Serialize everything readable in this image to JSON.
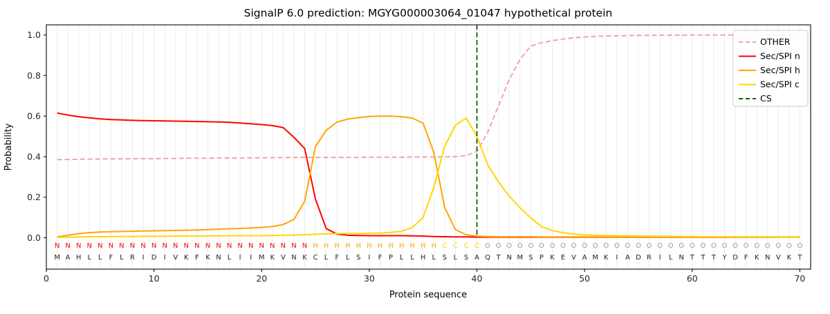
{
  "title": "SignalP 6.0 prediction: MGYG000003064_01047 hypothetical protein",
  "axes": {
    "ylabel": "Probability",
    "xlabel": "Protein sequence",
    "yticks": [
      0.0,
      0.2,
      0.4,
      0.6,
      0.8,
      1.0
    ],
    "xticks": [
      0,
      10,
      20,
      30,
      40,
      50,
      60,
      70
    ]
  },
  "legend": {
    "entries": [
      {
        "label": "OTHER",
        "color": "#f5a3a3",
        "dash": true
      },
      {
        "label": "Sec/SPI n",
        "color": "#ff0000",
        "dash": false
      },
      {
        "label": "Sec/SPI h",
        "color": "#ffa500",
        "dash": false
      },
      {
        "label": "Sec/SPI c",
        "color": "#ffd700",
        "dash": false
      },
      {
        "label": "CS",
        "color": "#006400",
        "dash": true
      }
    ]
  },
  "chart_data": {
    "type": "line",
    "title": "SignalP 6.0 prediction: MGYG000003064_01047 hypothetical protein",
    "xlabel": "Protein sequence",
    "ylabel": "Probability",
    "xlim": [
      0,
      71
    ],
    "ylim": [
      -0.155,
      1.05
    ],
    "grid": "vertical-per-residue",
    "legend_position": "upper-right",
    "x_start": 1,
    "x_step": 1,
    "series": [
      {
        "name": "OTHER",
        "color": "#f5a3a3",
        "dash": true,
        "values": [
          0.385,
          0.386,
          0.387,
          0.388,
          0.388,
          0.389,
          0.389,
          0.39,
          0.39,
          0.39,
          0.391,
          0.391,
          0.392,
          0.392,
          0.392,
          0.393,
          0.393,
          0.393,
          0.394,
          0.394,
          0.395,
          0.395,
          0.396,
          0.396,
          0.396,
          0.396,
          0.396,
          0.396,
          0.396,
          0.397,
          0.397,
          0.397,
          0.397,
          0.398,
          0.398,
          0.398,
          0.399,
          0.4,
          0.405,
          0.425,
          0.52,
          0.65,
          0.78,
          0.88,
          0.945,
          0.962,
          0.972,
          0.98,
          0.986,
          0.99,
          0.993,
          0.995,
          0.996,
          0.997,
          0.998,
          0.998,
          0.999,
          0.999,
          0.999,
          1.0,
          1.0,
          1.0,
          1.0,
          1.0,
          1.0,
          1.0,
          1.0,
          1.0,
          1.0,
          1.0
        ]
      },
      {
        "name": "Sec/SPI n",
        "color": "#ff0000",
        "dash": false,
        "values": [
          0.615,
          0.605,
          0.597,
          0.591,
          0.586,
          0.583,
          0.581,
          0.579,
          0.578,
          0.577,
          0.576,
          0.575,
          0.574,
          0.573,
          0.572,
          0.571,
          0.569,
          0.566,
          0.562,
          0.558,
          0.553,
          0.543,
          0.495,
          0.44,
          0.19,
          0.045,
          0.018,
          0.012,
          0.011,
          0.01,
          0.01,
          0.01,
          0.01,
          0.009,
          0.008,
          0.006,
          0.005,
          0.004,
          0.004,
          0.003,
          0.003,
          0.003,
          0.003,
          0.003,
          0.003,
          0.003,
          0.003,
          0.003,
          0.003,
          0.003,
          0.003,
          0.003,
          0.003,
          0.003,
          0.003,
          0.003,
          0.003,
          0.003,
          0.003,
          0.003,
          0.003,
          0.003,
          0.003,
          0.003,
          0.003,
          0.003,
          0.003,
          0.003,
          0.003,
          0.003
        ]
      },
      {
        "name": "Sec/SPI h",
        "color": "#ffa500",
        "dash": false,
        "values": [
          0.004,
          0.012,
          0.02,
          0.025,
          0.028,
          0.03,
          0.031,
          0.032,
          0.033,
          0.034,
          0.035,
          0.036,
          0.037,
          0.038,
          0.04,
          0.042,
          0.044,
          0.046,
          0.048,
          0.051,
          0.055,
          0.065,
          0.09,
          0.18,
          0.45,
          0.53,
          0.57,
          0.585,
          0.592,
          0.598,
          0.6,
          0.6,
          0.597,
          0.59,
          0.565,
          0.42,
          0.15,
          0.04,
          0.015,
          0.008,
          0.006,
          0.005,
          0.005,
          0.005,
          0.005,
          0.004,
          0.004,
          0.004,
          0.004,
          0.004,
          0.004,
          0.004,
          0.004,
          0.004,
          0.004,
          0.004,
          0.004,
          0.004,
          0.004,
          0.004,
          0.004,
          0.004,
          0.004,
          0.004,
          0.004,
          0.004,
          0.004,
          0.004,
          0.004,
          0.004
        ]
      },
      {
        "name": "Sec/SPI c",
        "color": "#ffd700",
        "dash": false,
        "values": [
          0.002,
          0.003,
          0.004,
          0.005,
          0.005,
          0.006,
          0.006,
          0.006,
          0.007,
          0.007,
          0.007,
          0.008,
          0.008,
          0.008,
          0.009,
          0.009,
          0.009,
          0.01,
          0.01,
          0.01,
          0.011,
          0.012,
          0.013,
          0.015,
          0.017,
          0.019,
          0.02,
          0.021,
          0.021,
          0.022,
          0.023,
          0.026,
          0.032,
          0.05,
          0.1,
          0.25,
          0.45,
          0.555,
          0.59,
          0.5,
          0.36,
          0.275,
          0.205,
          0.148,
          0.098,
          0.055,
          0.035,
          0.025,
          0.018,
          0.014,
          0.012,
          0.011,
          0.01,
          0.009,
          0.008,
          0.008,
          0.007,
          0.007,
          0.006,
          0.006,
          0.005,
          0.005,
          0.005,
          0.004,
          0.004,
          0.004,
          0.004,
          0.003,
          0.003,
          0.003
        ]
      }
    ],
    "cs_line": {
      "name": "CS",
      "x": 40,
      "color": "#006400",
      "dash": true
    },
    "sequence": "MAHLLFLRIDIVKFKNLIIMKVNKCLFLSIFPLLHLSLSAQTNMSPKEVAMKIADRILNTTTYDFKNVKT",
    "region_labels": "NNNNNNNNNNNNNNNNNNNNNNNNHHHHHHHHHHHHCCCCOOOOOOOOOOOOOOOOOOOOOOOOOOOOOO",
    "label_colors": {
      "N": "#ff0000",
      "H": "#ffa500",
      "C": "#ffd700",
      "O": "#999999"
    },
    "colors": {
      "grid": "#ebebeb",
      "frame": "#1a1a1a",
      "sequence_text": "#262626",
      "background": "#ffffff"
    }
  }
}
